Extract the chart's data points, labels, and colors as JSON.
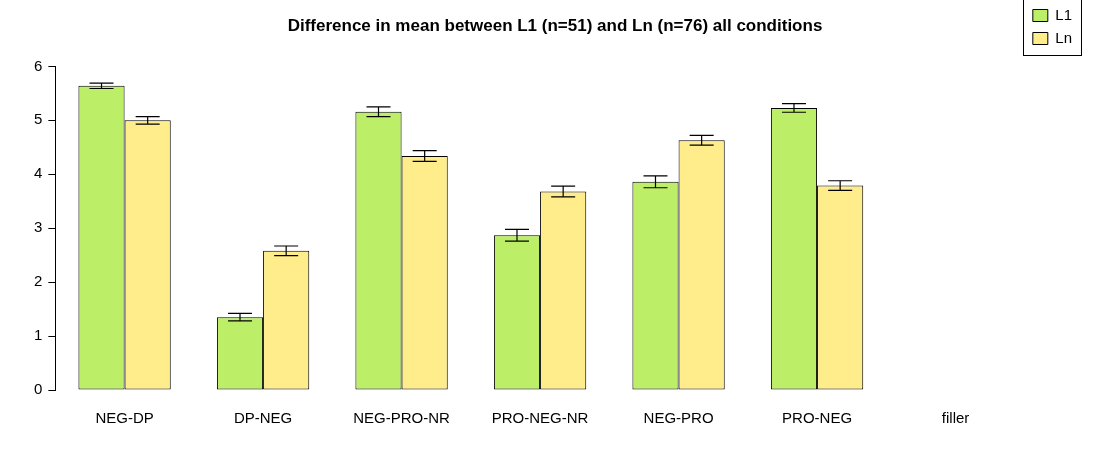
{
  "chart_data": {
    "type": "bar",
    "title": "Difference in mean between L1 (n=51) and Ln (n=76) all conditions",
    "categories": [
      "NEG-DP",
      "DP-NEG",
      "NEG-PRO-NR",
      "PRO-NEG-NR",
      "NEG-PRO",
      "PRO-NEG",
      "filler"
    ],
    "series": [
      {
        "name": "L1",
        "color": "#bcee68",
        "values": [
          5.64,
          1.35,
          5.16,
          2.87,
          3.86,
          5.23,
          null
        ],
        "errors": [
          0.05,
          0.07,
          0.09,
          0.11,
          0.11,
          0.08,
          null
        ]
      },
      {
        "name": "Ln",
        "color": "#ffec8b",
        "values": [
          5.0,
          2.58,
          4.34,
          3.68,
          4.63,
          3.79,
          null
        ],
        "errors": [
          0.07,
          0.09,
          0.1,
          0.1,
          0.09,
          0.09,
          null
        ]
      }
    ],
    "ylim": [
      0,
      6
    ],
    "yticks": [
      0,
      1,
      2,
      3,
      4,
      5,
      6
    ],
    "legend": "top right"
  }
}
